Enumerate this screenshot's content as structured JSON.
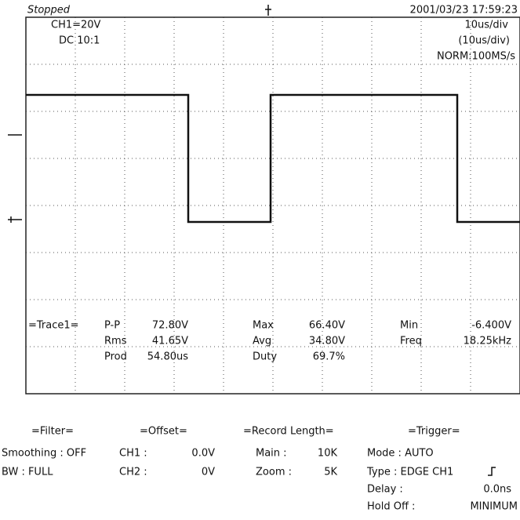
{
  "header": {
    "status": "Stopped",
    "datetime": "2001/03/23  17:59:23",
    "channel": "CH1=20V",
    "coupling": "DC  10:1",
    "timebase": "10us/div",
    "timebase2": "(10us/div)",
    "sampling": "NORM:100MS/s"
  },
  "measurements": {
    "title": "=Trace1=",
    "items": [
      {
        "label": "P-P",
        "value": "72.80V"
      },
      {
        "label": "Max",
        "value": "66.40V"
      },
      {
        "label": "Min",
        "value": "-6.400V"
      },
      {
        "label": "Rms",
        "value": "41.65V"
      },
      {
        "label": "Avg",
        "value": "34.80V"
      },
      {
        "label": "Freq",
        "value": "18.25kHz"
      },
      {
        "label": "Prod",
        "value": "54.80us"
      },
      {
        "label": "Duty",
        "value": "69.7%"
      }
    ]
  },
  "settings": {
    "filter": {
      "title": "=Filter=",
      "smoothing": "Smoothing : OFF",
      "bw": "BW : FULL"
    },
    "offset": {
      "title": "=Offset=",
      "ch1_label": "CH1 :",
      "ch1": "0.0V",
      "ch2_label": "CH2 :",
      "ch2": "0V"
    },
    "record": {
      "title": "=Record Length=",
      "main_label": "Main :",
      "main": "10K",
      "zoom_label": "Zoom :",
      "zoom": "5K"
    },
    "trigger": {
      "title": "=Trigger=",
      "mode": "Mode : AUTO",
      "type": "Type : EDGE CH1",
      "delay_label": "Delay :",
      "delay": "0.0ns",
      "holdoff_label": "Hold Off :",
      "holdoff": "MINIMUM"
    }
  }
}
